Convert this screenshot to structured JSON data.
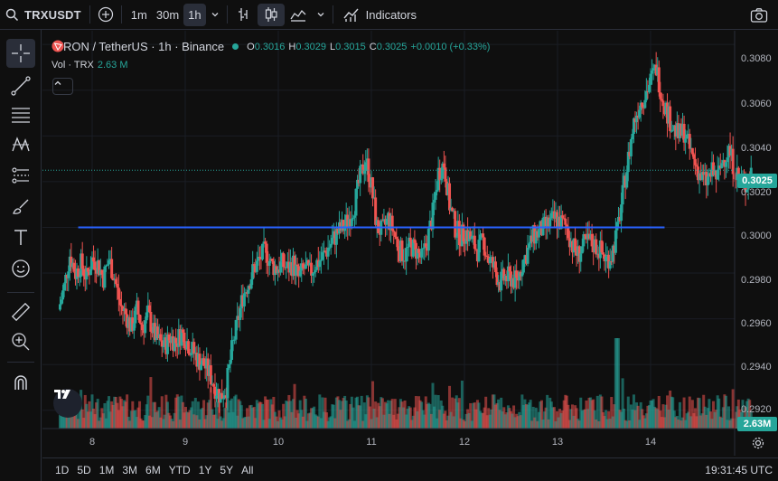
{
  "toolbar": {
    "symbol": "TRXUSDT",
    "intervals": [
      "1m",
      "30m",
      "1h"
    ],
    "active_interval": "1h",
    "indicators_label": "Indicators"
  },
  "legend": {
    "title": "TRON / TetherUS · 1h · Binance",
    "open_label": "O",
    "open": "0.3016",
    "high_label": "H",
    "high": "0.3029",
    "low_label": "L",
    "low": "0.3015",
    "close_label": "C",
    "close": "0.3025",
    "change": "+0.0010 (+0.33%)",
    "vol_label": "Vol · TRX",
    "vol_value": "2.63 M"
  },
  "price_axis": [
    "0.3080",
    "0.3060",
    "0.3040",
    "0.3020",
    "0.3000",
    "0.2980",
    "0.2960",
    "0.2940",
    "0.2920"
  ],
  "current_price": "0.3025",
  "current_volume": "2.63M",
  "time_axis": [
    "8",
    "9",
    "10",
    "11",
    "12",
    "13",
    "14"
  ],
  "ranges": [
    "1D",
    "5D",
    "1M",
    "3M",
    "6M",
    "YTD",
    "1Y",
    "5Y",
    "All"
  ],
  "clock": "19:31:45 UTC",
  "colors": {
    "up": "#26a69a",
    "down": "#ef5350",
    "hline": "#2962ff",
    "bg": "#0f0f0f"
  },
  "horizontal_line_price": 0.3,
  "chart_data": {
    "type": "candlestick",
    "y_range": [
      0.2912,
      0.3086
    ],
    "price_series": [
      [
        7.64,
        0.2964
      ],
      [
        7.7,
        0.2974
      ],
      [
        7.76,
        0.2988
      ],
      [
        7.82,
        0.298
      ],
      [
        7.88,
        0.2984
      ],
      [
        7.94,
        0.2978
      ],
      [
        8.0,
        0.2986
      ],
      [
        8.06,
        0.2984
      ],
      [
        8.12,
        0.2978
      ],
      [
        8.18,
        0.2986
      ],
      [
        8.24,
        0.2978
      ],
      [
        8.3,
        0.2966
      ],
      [
        8.36,
        0.2962
      ],
      [
        8.42,
        0.2956
      ],
      [
        8.48,
        0.2964
      ],
      [
        8.54,
        0.2956
      ],
      [
        8.6,
        0.2962
      ],
      [
        8.66,
        0.2954
      ],
      [
        8.72,
        0.295
      ],
      [
        8.78,
        0.2948
      ],
      [
        8.84,
        0.2952
      ],
      [
        8.9,
        0.295
      ],
      [
        8.96,
        0.2954
      ],
      [
        9.02,
        0.295
      ],
      [
        9.08,
        0.2946
      ],
      [
        9.14,
        0.2942
      ],
      [
        9.2,
        0.294
      ],
      [
        9.26,
        0.2936
      ],
      [
        9.32,
        0.293
      ],
      [
        9.38,
        0.2926
      ],
      [
        9.44,
        0.293
      ],
      [
        9.5,
        0.2946
      ],
      [
        9.56,
        0.2958
      ],
      [
        9.62,
        0.297
      ],
      [
        9.68,
        0.2976
      ],
      [
        9.74,
        0.2982
      ],
      [
        9.8,
        0.2986
      ],
      [
        9.86,
        0.299
      ],
      [
        9.92,
        0.2984
      ],
      [
        9.98,
        0.2982
      ],
      [
        10.04,
        0.2984
      ],
      [
        10.1,
        0.2982
      ],
      [
        10.16,
        0.2984
      ],
      [
        10.22,
        0.2978
      ],
      [
        10.28,
        0.2982
      ],
      [
        10.34,
        0.298
      ],
      [
        10.4,
        0.2984
      ],
      [
        10.46,
        0.2986
      ],
      [
        10.52,
        0.299
      ],
      [
        10.58,
        0.2994
      ],
      [
        10.64,
        0.2998
      ],
      [
        10.7,
        0.3
      ],
      [
        10.76,
        0.3004
      ],
      [
        10.82,
        0.301
      ],
      [
        10.88,
        0.3022
      ],
      [
        10.94,
        0.303
      ],
      [
        11.0,
        0.3018
      ],
      [
        11.06,
        0.3
      ],
      [
        11.12,
        0.2998
      ],
      [
        11.18,
        0.3004
      ],
      [
        11.24,
        0.2998
      ],
      [
        11.3,
        0.299
      ],
      [
        11.36,
        0.2988
      ],
      [
        11.42,
        0.2992
      ],
      [
        11.48,
        0.299
      ],
      [
        11.54,
        0.2986
      ],
      [
        11.6,
        0.2994
      ],
      [
        11.66,
        0.3006
      ],
      [
        11.72,
        0.3024
      ],
      [
        11.78,
        0.3028
      ],
      [
        11.84,
        0.301
      ],
      [
        11.9,
        0.3
      ],
      [
        11.96,
        0.2996
      ],
      [
        12.02,
        0.2998
      ],
      [
        12.08,
        0.2994
      ],
      [
        12.14,
        0.299
      ],
      [
        12.2,
        0.2994
      ],
      [
        12.26,
        0.2986
      ],
      [
        12.32,
        0.2982
      ],
      [
        12.38,
        0.2976
      ],
      [
        12.44,
        0.2978
      ],
      [
        12.5,
        0.2978
      ],
      [
        12.56,
        0.2976
      ],
      [
        12.62,
        0.2984
      ],
      [
        12.68,
        0.299
      ],
      [
        12.74,
        0.2996
      ],
      [
        12.8,
        0.2998
      ],
      [
        12.86,
        0.3
      ],
      [
        12.92,
        0.3002
      ],
      [
        12.98,
        0.3004
      ],
      [
        13.04,
        0.3002
      ],
      [
        13.1,
        0.3
      ],
      [
        13.16,
        0.2992
      ],
      [
        13.22,
        0.2988
      ],
      [
        13.28,
        0.2992
      ],
      [
        13.34,
        0.2994
      ],
      [
        13.4,
        0.2992
      ],
      [
        13.46,
        0.299
      ],
      [
        13.52,
        0.2986
      ],
      [
        13.58,
        0.2988
      ],
      [
        13.64,
        0.2998
      ],
      [
        13.7,
        0.3014
      ],
      [
        13.76,
        0.303
      ],
      [
        13.82,
        0.3046
      ],
      [
        13.88,
        0.3054
      ],
      [
        13.94,
        0.3058
      ],
      [
        14.0,
        0.3064
      ],
      [
        14.06,
        0.307
      ],
      [
        14.12,
        0.3058
      ],
      [
        14.18,
        0.305
      ],
      [
        14.24,
        0.3044
      ],
      [
        14.3,
        0.304
      ],
      [
        14.36,
        0.3042
      ],
      [
        14.42,
        0.3034
      ],
      [
        14.48,
        0.3028
      ],
      [
        14.54,
        0.3022
      ],
      [
        14.6,
        0.302
      ],
      [
        14.66,
        0.3024
      ],
      [
        14.72,
        0.3022
      ],
      [
        14.78,
        0.303
      ],
      [
        14.84,
        0.3034
      ],
      [
        14.9,
        0.3026
      ],
      [
        14.96,
        0.302
      ],
      [
        15.02,
        0.3018
      ],
      [
        15.08,
        0.3025
      ]
    ]
  }
}
